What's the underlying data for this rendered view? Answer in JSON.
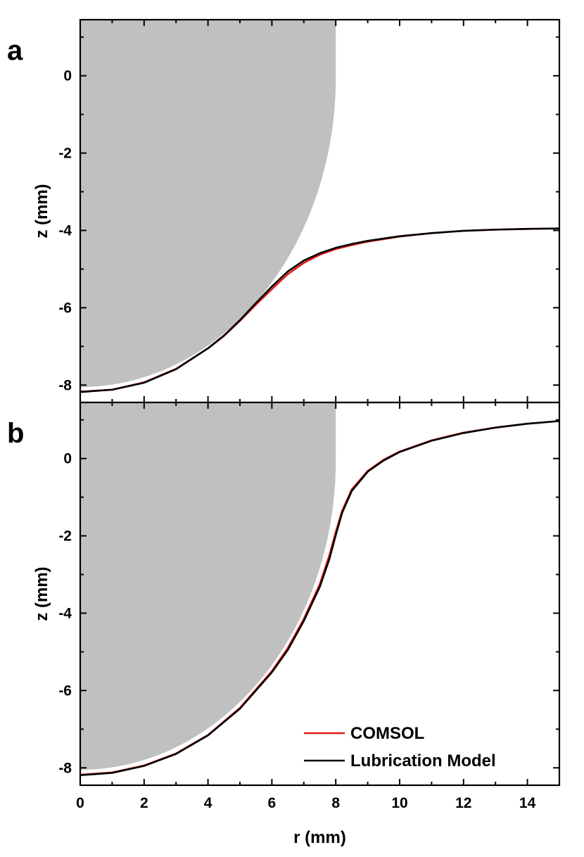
{
  "chart_data": [
    {
      "type": "line",
      "panel_label": "a",
      "xlabel": "",
      "ylabel": "z (mm)",
      "xlim": [
        0,
        15
      ],
      "ylim": [
        -8.45,
        1.45
      ],
      "x_ticks": [
        0,
        2,
        4,
        6,
        8,
        10,
        12,
        14
      ],
      "y_ticks": [
        -8,
        -6,
        -4,
        -2,
        0
      ],
      "y_tick_labels": [
        "-8",
        "-6",
        "-4",
        "-2",
        "0"
      ],
      "show_x_tick_labels": false,
      "grid": false,
      "legend": null,
      "solid": {
        "color": "#c0c0c0",
        "radius": 8,
        "bottom_z": -8.05,
        "top_z": 1.45
      },
      "series": [
        {
          "color": "#e31a1c",
          "x": [
            0,
            1,
            2,
            3,
            4,
            4.5,
            5,
            5.5,
            6,
            6.5,
            7,
            7.5,
            8,
            8.5,
            9,
            10,
            11,
            12,
            13,
            14,
            15
          ],
          "y": [
            -8.17,
            -8.12,
            -7.93,
            -7.58,
            -7.05,
            -6.73,
            -6.34,
            -5.92,
            -5.52,
            -5.13,
            -4.84,
            -4.63,
            -4.48,
            -4.38,
            -4.29,
            -4.16,
            -4.07,
            -4.01,
            -3.98,
            -3.96,
            -3.95
          ]
        },
        {
          "color": "#000000",
          "x": [
            0,
            1,
            2,
            3,
            4,
            4.5,
            5,
            5.5,
            6,
            6.5,
            7,
            7.5,
            8,
            8.5,
            9,
            10,
            11,
            12,
            13,
            14,
            15
          ],
          "y": [
            -8.18,
            -8.12,
            -7.94,
            -7.59,
            -7.05,
            -6.72,
            -6.32,
            -5.88,
            -5.45,
            -5.06,
            -4.78,
            -4.59,
            -4.45,
            -4.35,
            -4.27,
            -4.15,
            -4.07,
            -4.01,
            -3.98,
            -3.96,
            -3.95
          ]
        }
      ]
    },
    {
      "type": "line",
      "panel_label": "b",
      "xlabel": "r (mm)",
      "ylabel": "z (mm)",
      "xlim": [
        0,
        15
      ],
      "ylim": [
        -8.45,
        1.45
      ],
      "x_ticks": [
        0,
        2,
        4,
        6,
        8,
        10,
        12,
        14
      ],
      "x_tick_labels": [
        "0",
        "2",
        "4",
        "6",
        "8",
        "10",
        "12",
        "14"
      ],
      "y_ticks": [
        -8,
        -6,
        -4,
        -2,
        0
      ],
      "y_tick_labels": [
        "-8",
        "-6",
        "-4",
        "-2",
        "0"
      ],
      "show_x_tick_labels": true,
      "grid": false,
      "legend": "bottom-right",
      "solid": {
        "color": "#c0c0c0",
        "radius": 8,
        "bottom_z": -8.05,
        "top_z": 1.45
      },
      "series": [
        {
          "name": "COMSOL",
          "color": "#e31a1c",
          "x": [
            0,
            1,
            2,
            3,
            4,
            5,
            6,
            6.5,
            7,
            7.5,
            7.8,
            8,
            8.2,
            8.5,
            9,
            9.5,
            10,
            11,
            12,
            13,
            14,
            15
          ],
          "y": [
            -8.18,
            -8.12,
            -7.94,
            -7.63,
            -7.15,
            -6.45,
            -5.5,
            -4.9,
            -4.15,
            -3.25,
            -2.5,
            -1.9,
            -1.35,
            -0.8,
            -0.32,
            -0.03,
            0.18,
            0.47,
            0.67,
            0.8,
            0.9,
            0.97
          ]
        },
        {
          "name": "Lubrication Model",
          "color": "#000000",
          "x": [
            0,
            1,
            2,
            3,
            4,
            5,
            6,
            6.5,
            7,
            7.5,
            7.8,
            8,
            8.2,
            8.5,
            9,
            9.5,
            10,
            11,
            12,
            13,
            14,
            15
          ],
          "y": [
            -8.19,
            -8.13,
            -7.95,
            -7.64,
            -7.16,
            -6.47,
            -5.53,
            -4.95,
            -4.2,
            -3.32,
            -2.6,
            -1.98,
            -1.4,
            -0.84,
            -0.34,
            -0.05,
            0.17,
            0.46,
            0.66,
            0.8,
            0.9,
            0.97
          ]
        }
      ]
    }
  ]
}
